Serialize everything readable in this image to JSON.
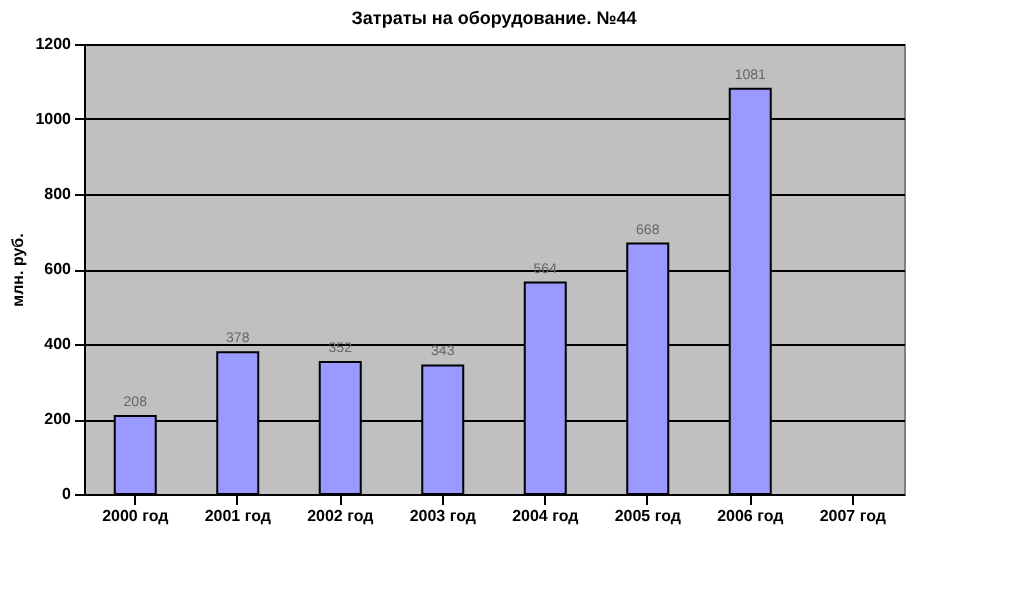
{
  "chart_data": {
    "type": "bar",
    "title": "Затраты на оборудование. №44",
    "ylabel": "млн. руб.",
    "categories": [
      "2000 год",
      "2001 год",
      "2002 год",
      "2003 год",
      "2004 год",
      "2005 год",
      "2006 год",
      "2007 год"
    ],
    "values": [
      208,
      378,
      352,
      343,
      564,
      668,
      1081,
      null
    ],
    "color": "#9999ff",
    "ylim": [
      0,
      1200
    ],
    "yticks": [
      0,
      200,
      400,
      600,
      800,
      1000,
      1200
    ],
    "grid": "y",
    "data_labels": true
  }
}
